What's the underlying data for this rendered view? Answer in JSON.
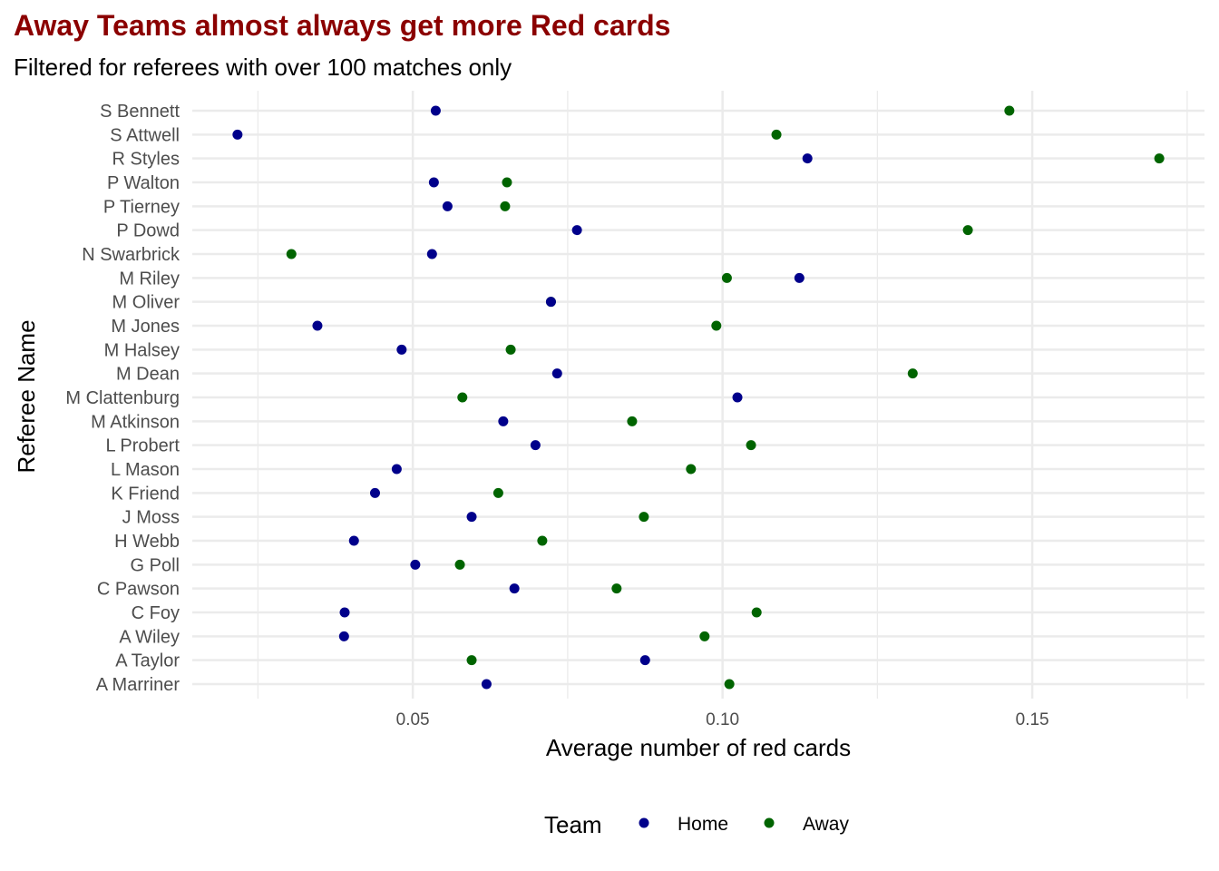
{
  "chart_data": {
    "type": "scatter",
    "title": "Away Teams almost always get more Red cards",
    "subtitle": "Filtered for referees with over 100 matches only",
    "xlabel": "Average number of red cards",
    "ylabel": "Referee Name",
    "xlim": [
      0.0144,
      0.1778
    ],
    "xticks": [
      0.05,
      0.1,
      0.15
    ],
    "xtick_labels": [
      "0.05",
      "0.10",
      "0.15"
    ],
    "grid": true,
    "legend": {
      "title": "Team",
      "placement": "bottom",
      "entries": [
        "Home",
        "Away"
      ]
    },
    "colors": {
      "Home": "#00008b",
      "Away": "#006400"
    },
    "categories": [
      "S Bennett",
      "S Attwell",
      "R Styles",
      "P Walton",
      "P Tierney",
      "P Dowd",
      "N Swarbrick",
      "M Riley",
      "M Oliver",
      "M Jones",
      "M Halsey",
      "M Dean",
      "M Clattenburg",
      "M Atkinson",
      "L Probert",
      "L Mason",
      "K Friend",
      "J Moss",
      "H Webb",
      "G Poll",
      "C Pawson",
      "C Foy",
      "A Wiley",
      "A Taylor",
      "A Marriner"
    ],
    "series": [
      {
        "name": "Away",
        "values": [
          0.1463,
          0.1087,
          0.1705,
          0.0652,
          0.0649,
          0.1396,
          0.0304,
          0.1007,
          0.0723,
          0.099,
          0.0658,
          0.1307,
          0.058,
          0.0854,
          0.1046,
          0.0949,
          0.0638,
          0.0873,
          0.0709,
          0.0576,
          0.0829,
          0.1055,
          0.0971,
          0.0595,
          0.1011
        ]
      },
      {
        "name": "Home",
        "values": [
          0.0537,
          0.0217,
          0.1137,
          0.0534,
          0.0556,
          0.0765,
          0.0531,
          0.1124,
          0.0723,
          0.0346,
          0.0482,
          0.0733,
          0.1024,
          0.0646,
          0.0698,
          0.0474,
          0.0439,
          0.0595,
          0.0405,
          0.0504,
          0.0664,
          0.039,
          0.0389,
          0.0875,
          0.0619
        ]
      }
    ]
  }
}
